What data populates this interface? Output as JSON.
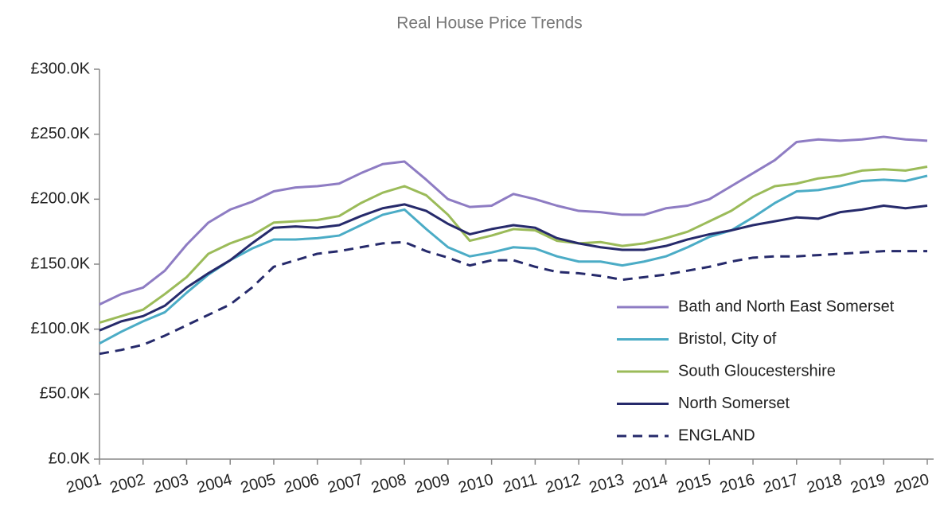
{
  "chart_data": {
    "type": "line",
    "title": "Real House Price Trends",
    "x": [
      2001,
      2001.5,
      2002,
      2002.5,
      2003,
      2003.5,
      2004,
      2004.5,
      2005,
      2005.5,
      2006,
      2006.5,
      2007,
      2007.5,
      2008,
      2008.5,
      2009,
      2009.5,
      2010,
      2010.5,
      2011,
      2011.5,
      2012,
      2012.5,
      2013,
      2013.5,
      2014,
      2014.5,
      2015,
      2015.5,
      2016,
      2016.5,
      2017,
      2017.5,
      2018,
      2018.5,
      2019,
      2019.5,
      2020
    ],
    "xlim": [
      2001,
      2020
    ],
    "xticks": [
      2001,
      2002,
      2003,
      2004,
      2005,
      2006,
      2007,
      2008,
      2009,
      2010,
      2011,
      2012,
      2013,
      2014,
      2015,
      2016,
      2017,
      2018,
      2019,
      2020
    ],
    "ylim": [
      0,
      300000
    ],
    "yticks": [
      {
        "value": 0,
        "label": "£0.0K"
      },
      {
        "value": 50000,
        "label": "£50.0K"
      },
      {
        "value": 100000,
        "label": "£100.0K"
      },
      {
        "value": 150000,
        "label": "£150.0K"
      },
      {
        "value": 200000,
        "label": "£200.0K"
      },
      {
        "value": 250000,
        "label": "£250.0K"
      },
      {
        "value": 300000,
        "label": "£300.0K"
      }
    ],
    "legend": "lower right",
    "series": [
      {
        "name": "Bath and North East Somerset",
        "color": "#8e7cc3",
        "dashed": false,
        "values": [
          119000,
          127000,
          132000,
          145000,
          165000,
          182000,
          192000,
          198000,
          206000,
          209000,
          210000,
          212000,
          220000,
          227000,
          229000,
          215000,
          200000,
          194000,
          195000,
          204000,
          200000,
          195000,
          191000,
          190000,
          188000,
          188000,
          193000,
          195000,
          200000,
          210000,
          220000,
          230000,
          244000,
          246000,
          245000,
          246000,
          248000,
          246000,
          245000
        ]
      },
      {
        "name": "Bristol, City of",
        "color": "#4bacc6",
        "dashed": false,
        "values": [
          89000,
          98000,
          106000,
          113000,
          128000,
          142000,
          153000,
          162000,
          169000,
          169000,
          170000,
          172000,
          180000,
          188000,
          192000,
          177000,
          163000,
          156000,
          159000,
          163000,
          162000,
          156000,
          152000,
          152000,
          149000,
          152000,
          156000,
          163000,
          171000,
          176000,
          186000,
          197000,
          206000,
          207000,
          210000,
          214000,
          215000,
          214000,
          218000
        ]
      },
      {
        "name": "South Gloucestershire",
        "color": "#9bbb59",
        "dashed": false,
        "values": [
          105000,
          110000,
          115000,
          127000,
          140000,
          158000,
          166000,
          172000,
          182000,
          183000,
          184000,
          187000,
          197000,
          205000,
          210000,
          203000,
          188000,
          168000,
          172000,
          177000,
          176000,
          168000,
          166000,
          167000,
          164000,
          166000,
          170000,
          175000,
          183000,
          191000,
          202000,
          210000,
          212000,
          216000,
          218000,
          222000,
          223000,
          222000,
          225000
        ]
      },
      {
        "name": "North Somerset",
        "color": "#262a6b",
        "dashed": false,
        "values": [
          99000,
          106000,
          110000,
          118000,
          132000,
          143000,
          153000,
          166000,
          178000,
          179000,
          178000,
          180000,
          187000,
          193000,
          196000,
          191000,
          181000,
          173000,
          177000,
          180000,
          178000,
          170000,
          166000,
          163000,
          161000,
          161000,
          164000,
          169000,
          173000,
          176000,
          180000,
          183000,
          186000,
          185000,
          190000,
          192000,
          195000,
          193000,
          195000
        ]
      },
      {
        "name": "ENGLAND",
        "color": "#262a6b",
        "dashed": true,
        "values": [
          81000,
          84000,
          88000,
          95000,
          103000,
          111000,
          119000,
          132000,
          148000,
          153000,
          158000,
          160000,
          163000,
          166000,
          167000,
          160000,
          155000,
          149000,
          153000,
          153000,
          148000,
          144000,
          143000,
          141000,
          138000,
          140000,
          142000,
          145000,
          148000,
          152000,
          155000,
          156000,
          156000,
          157000,
          158000,
          159000,
          160000,
          160000,
          160000
        ]
      }
    ]
  }
}
